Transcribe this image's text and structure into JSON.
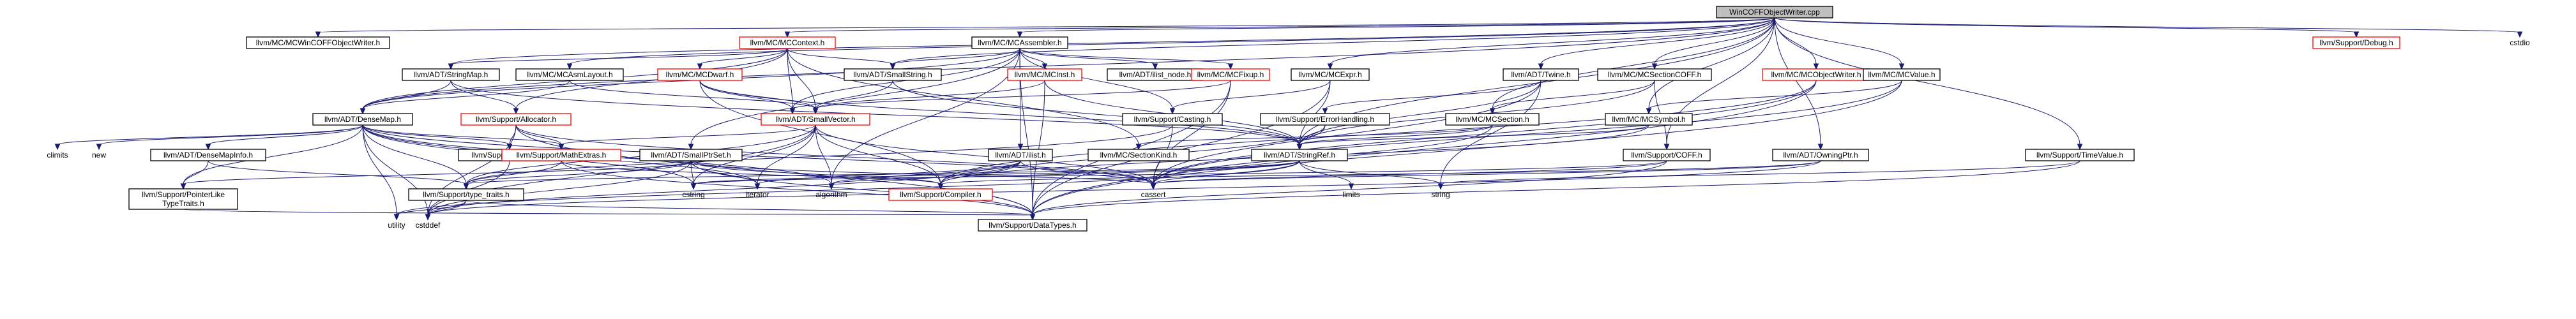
{
  "root": "WinCOFFObjectWriter.cpp",
  "nodes": [
    {
      "id": "root",
      "label": "WinCOFFObjectWriter.cpp",
      "kind": "root"
    },
    {
      "id": "mcwincoff",
      "label": "llvm/MC/MCWinCOFFObjectWriter.h",
      "kind": "file"
    },
    {
      "id": "mccontext",
      "label": "llvm/MC/MCContext.h",
      "kind": "partial"
    },
    {
      "id": "mcassembler",
      "label": "llvm/MC/MCAssembler.h",
      "kind": "file"
    },
    {
      "id": "debug",
      "label": "llvm/Support/Debug.h",
      "kind": "partial"
    },
    {
      "id": "cstdio",
      "label": "cstdio",
      "kind": "system"
    },
    {
      "id": "stringmap",
      "label": "llvm/ADT/StringMap.h",
      "kind": "file"
    },
    {
      "id": "mcasmlayout",
      "label": "llvm/MC/MCAsmLayout.h",
      "kind": "file"
    },
    {
      "id": "mcdwarf",
      "label": "llvm/MC/MCDwarf.h",
      "kind": "partial"
    },
    {
      "id": "smallstring",
      "label": "llvm/ADT/SmallString.h",
      "kind": "file"
    },
    {
      "id": "mcinst",
      "label": "llvm/MC/MCInst.h",
      "kind": "partial"
    },
    {
      "id": "ilistnode",
      "label": "llvm/ADT/ilist_node.h",
      "kind": "file"
    },
    {
      "id": "mcfixup",
      "label": "llvm/MC/MCFixup.h",
      "kind": "partial"
    },
    {
      "id": "mcexpr",
      "label": "llvm/MC/MCExpr.h",
      "kind": "file"
    },
    {
      "id": "twine",
      "label": "llvm/ADT/Twine.h",
      "kind": "file"
    },
    {
      "id": "mcsectioncoff",
      "label": "llvm/MC/MCSectionCOFF.h",
      "kind": "file"
    },
    {
      "id": "mcobjectwriter",
      "label": "llvm/MC/MCObjectWriter.h",
      "kind": "partial"
    },
    {
      "id": "mcvalue",
      "label": "llvm/MC/MCValue.h",
      "kind": "file"
    },
    {
      "id": "densemap",
      "label": "llvm/ADT/DenseMap.h",
      "kind": "file"
    },
    {
      "id": "allocator",
      "label": "llvm/Support/Allocator.h",
      "kind": "partial"
    },
    {
      "id": "vector",
      "label": "vector",
      "kind": "system"
    },
    {
      "id": "smallvector",
      "label": "llvm/ADT/SmallVector.h",
      "kind": "partial"
    },
    {
      "id": "casting",
      "label": "llvm/Support/Casting.h",
      "kind": "file"
    },
    {
      "id": "errorhandling",
      "label": "llvm/Support/ErrorHandling.h",
      "kind": "file"
    },
    {
      "id": "mcsection",
      "label": "llvm/MC/MCSection.h",
      "kind": "file"
    },
    {
      "id": "mcsymbol",
      "label": "llvm/MC/MCSymbol.h",
      "kind": "file"
    },
    {
      "id": "climits",
      "label": "climits",
      "kind": "system"
    },
    {
      "id": "new",
      "label": "new",
      "kind": "system"
    },
    {
      "id": "densemapinfo",
      "label": "llvm/ADT/DenseMapInfo.h",
      "kind": "file"
    },
    {
      "id": "alignof",
      "label": "llvm/Support/AlignOf.h",
      "kind": "file"
    },
    {
      "id": "mathextras",
      "label": "llvm/Support/MathExtras.h",
      "kind": "partial"
    },
    {
      "id": "smallptrset",
      "label": "llvm/ADT/SmallPtrSet.h",
      "kind": "file"
    },
    {
      "id": "ilist",
      "label": "llvm/ADT/ilist.h",
      "kind": "file"
    },
    {
      "id": "stringref",
      "label": "llvm/ADT/StringRef.h",
      "kind": "file"
    },
    {
      "id": "mcsectionkind",
      "label": "llvm/MC/SectionKind.h",
      "kind": "file"
    },
    {
      "id": "coff",
      "label": "llvm/Support/COFF.h",
      "kind": "file"
    },
    {
      "id": "owningptr",
      "label": "llvm/ADT/OwningPtr.h",
      "kind": "file"
    },
    {
      "id": "timevalue",
      "label": "llvm/Support/TimeValue.h",
      "kind": "file"
    },
    {
      "id": "ptrliketraits",
      "label": "llvm/Support/PointerLike\nTypeTraits.h",
      "kind": "file"
    },
    {
      "id": "typetraits",
      "label": "llvm/Support/type_traits.h",
      "kind": "file"
    },
    {
      "id": "cstring",
      "label": "cstring",
      "kind": "system"
    },
    {
      "id": "iterator",
      "label": "iterator",
      "kind": "system"
    },
    {
      "id": "algorithm",
      "label": "algorithm",
      "kind": "system"
    },
    {
      "id": "compiler",
      "label": "llvm/Support/Compiler.h",
      "kind": "partial"
    },
    {
      "id": "cassert",
      "label": "cassert",
      "kind": "system"
    },
    {
      "id": "limits",
      "label": "limits",
      "kind": "system"
    },
    {
      "id": "string",
      "label": "string",
      "kind": "system"
    },
    {
      "id": "utility",
      "label": "utility",
      "kind": "system"
    },
    {
      "id": "cstddef",
      "label": "cstddef",
      "kind": "system"
    },
    {
      "id": "datatypes",
      "label": "llvm/Support/DataTypes.h",
      "kind": "file"
    }
  ],
  "edges": [
    [
      "root",
      "mcwincoff"
    ],
    [
      "root",
      "mccontext"
    ],
    [
      "root",
      "mcassembler"
    ],
    [
      "root",
      "debug"
    ],
    [
      "root",
      "cstdio"
    ],
    [
      "root",
      "stringmap"
    ],
    [
      "root",
      "mcasmlayout"
    ],
    [
      "root",
      "densemap"
    ],
    [
      "root",
      "mcexpr"
    ],
    [
      "root",
      "twine"
    ],
    [
      "root",
      "mcsectioncoff"
    ],
    [
      "root",
      "mcobjectwriter"
    ],
    [
      "root",
      "mcvalue"
    ],
    [
      "root",
      "mcsymbol"
    ],
    [
      "root",
      "coff"
    ],
    [
      "root",
      "owningptr"
    ],
    [
      "root",
      "timevalue"
    ],
    [
      "root",
      "smallstring"
    ],
    [
      "root",
      "stringref"
    ],
    [
      "root",
      "mcsection"
    ],
    [
      "mccontext",
      "stringmap"
    ],
    [
      "mccontext",
      "mcdwarf"
    ],
    [
      "mccontext",
      "smallstring"
    ],
    [
      "mccontext",
      "smallvector"
    ],
    [
      "mccontext",
      "allocator"
    ],
    [
      "mccontext",
      "densemap"
    ],
    [
      "mccontext",
      "vector"
    ],
    [
      "mccontext",
      "mcsectionkind"
    ],
    [
      "mcassembler",
      "mcinst"
    ],
    [
      "mcassembler",
      "ilistnode"
    ],
    [
      "mcassembler",
      "mcfixup"
    ],
    [
      "mcassembler",
      "smallptrset"
    ],
    [
      "mcassembler",
      "ilist"
    ],
    [
      "mcassembler",
      "casting"
    ],
    [
      "mcassembler",
      "densemap"
    ],
    [
      "mcassembler",
      "smallstring"
    ],
    [
      "mcassembler",
      "datatypes"
    ],
    [
      "mcassembler",
      "algorithm"
    ],
    [
      "mcassembler",
      "vector"
    ],
    [
      "stringmap",
      "allocator"
    ],
    [
      "stringmap",
      "stringref"
    ],
    [
      "stringmap",
      "densemap"
    ],
    [
      "mcasmlayout",
      "smallvector"
    ],
    [
      "mcasmlayout",
      "densemap"
    ],
    [
      "mcdwarf",
      "stringref"
    ],
    [
      "mcdwarf",
      "smallvector"
    ],
    [
      "mcdwarf",
      "vector"
    ],
    [
      "mcdwarf",
      "compiler"
    ],
    [
      "smallstring",
      "smallvector"
    ],
    [
      "smallstring",
      "stringref"
    ],
    [
      "mcinst",
      "smallvector"
    ],
    [
      "mcinst",
      "stringref"
    ],
    [
      "mcinst",
      "datatypes"
    ],
    [
      "mcfixup",
      "smallvector"
    ],
    [
      "mcfixup",
      "datatypes"
    ],
    [
      "mcfixup",
      "cassert"
    ],
    [
      "mcexpr",
      "casting"
    ],
    [
      "mcexpr",
      "datatypes"
    ],
    [
      "mcexpr",
      "stringref"
    ],
    [
      "twine",
      "stringref"
    ],
    [
      "twine",
      "errorhandling"
    ],
    [
      "twine",
      "cassert"
    ],
    [
      "twine",
      "string"
    ],
    [
      "mcsectioncoff",
      "mcsection"
    ],
    [
      "mcsectioncoff",
      "coff"
    ],
    [
      "mcsectioncoff",
      "stringref"
    ],
    [
      "mcobjectwriter",
      "compiler"
    ],
    [
      "mcobjectwriter",
      "datatypes"
    ],
    [
      "mcobjectwriter",
      "cassert"
    ],
    [
      "mcvalue",
      "mcsymbol"
    ],
    [
      "mcvalue",
      "datatypes"
    ],
    [
      "mcvalue",
      "cassert"
    ],
    [
      "densemap",
      "densemapinfo"
    ],
    [
      "densemap",
      "mathextras"
    ],
    [
      "densemap",
      "alignof"
    ],
    [
      "densemap",
      "typetraits"
    ],
    [
      "densemap",
      "ptrliketraits"
    ],
    [
      "densemap",
      "climits"
    ],
    [
      "densemap",
      "new"
    ],
    [
      "densemap",
      "utility"
    ],
    [
      "densemap",
      "cstring"
    ],
    [
      "densemap",
      "iterator"
    ],
    [
      "densemap",
      "algorithm"
    ],
    [
      "densemap",
      "cstddef"
    ],
    [
      "densemap",
      "cassert"
    ],
    [
      "allocator",
      "alignof"
    ],
    [
      "allocator",
      "mathextras"
    ],
    [
      "allocator",
      "datatypes"
    ],
    [
      "allocator",
      "cstddef"
    ],
    [
      "allocator",
      "cassert"
    ],
    [
      "allocator",
      "cstdlib_hidden"
    ],
    [
      "smallvector",
      "typetraits"
    ],
    [
      "smallvector",
      "mathextras"
    ],
    [
      "smallvector",
      "algorithm"
    ],
    [
      "smallvector",
      "iterator"
    ],
    [
      "smallvector",
      "cstring"
    ],
    [
      "smallvector",
      "cstddef"
    ],
    [
      "smallvector",
      "cassert"
    ],
    [
      "smallvector",
      "compiler"
    ],
    [
      "casting",
      "typetraits"
    ],
    [
      "casting",
      "cassert"
    ],
    [
      "errorhandling",
      "stringref"
    ],
    [
      "errorhandling",
      "compiler"
    ],
    [
      "mcsection",
      "mcsectionkind"
    ],
    [
      "mcsection",
      "stringref"
    ],
    [
      "mcsection",
      "cassert"
    ],
    [
      "mcsymbol",
      "stringref"
    ],
    [
      "mcsymbol",
      "compiler"
    ],
    [
      "densemapinfo",
      "ptrliketraits"
    ],
    [
      "densemapinfo",
      "typetraits"
    ],
    [
      "alignof",
      "cstddef"
    ],
    [
      "mathextras",
      "typetraits"
    ],
    [
      "mathextras",
      "compiler"
    ],
    [
      "mathextras",
      "datatypes"
    ],
    [
      "smallptrset",
      "typetraits"
    ],
    [
      "smallptrset",
      "compiler"
    ],
    [
      "smallptrset",
      "datatypes"
    ],
    [
      "smallptrset",
      "cstring"
    ],
    [
      "smallptrset",
      "iterator"
    ],
    [
      "smallptrset",
      "cstddef"
    ],
    [
      "smallptrset",
      "cassert"
    ],
    [
      "smallptrset",
      "ptrliketraits"
    ],
    [
      "ilist",
      "algorithm"
    ],
    [
      "ilist",
      "iterator"
    ],
    [
      "ilist",
      "cassert"
    ],
    [
      "ilist",
      "cstddef"
    ],
    [
      "ilist",
      "compiler"
    ],
    [
      "stringref",
      "typetraits"
    ],
    [
      "stringref",
      "algorithm"
    ],
    [
      "stringref",
      "cassert"
    ],
    [
      "stringref",
      "cstring"
    ],
    [
      "stringref",
      "limits"
    ],
    [
      "stringref",
      "string"
    ],
    [
      "stringref",
      "utility"
    ],
    [
      "coff",
      "datatypes"
    ],
    [
      "coff",
      "cassert"
    ],
    [
      "coff",
      "cstring"
    ],
    [
      "owningptr",
      "compiler"
    ],
    [
      "owningptr",
      "cassert"
    ],
    [
      "owningptr",
      "cstddef"
    ],
    [
      "timevalue",
      "datatypes"
    ],
    [
      "timevalue",
      "string"
    ],
    [
      "ptrliketraits",
      "datatypes"
    ],
    [
      "typetraits",
      "utility"
    ],
    [
      "typetraits",
      "cstddef"
    ],
    [
      "typetraits",
      "datatypes"
    ]
  ]
}
